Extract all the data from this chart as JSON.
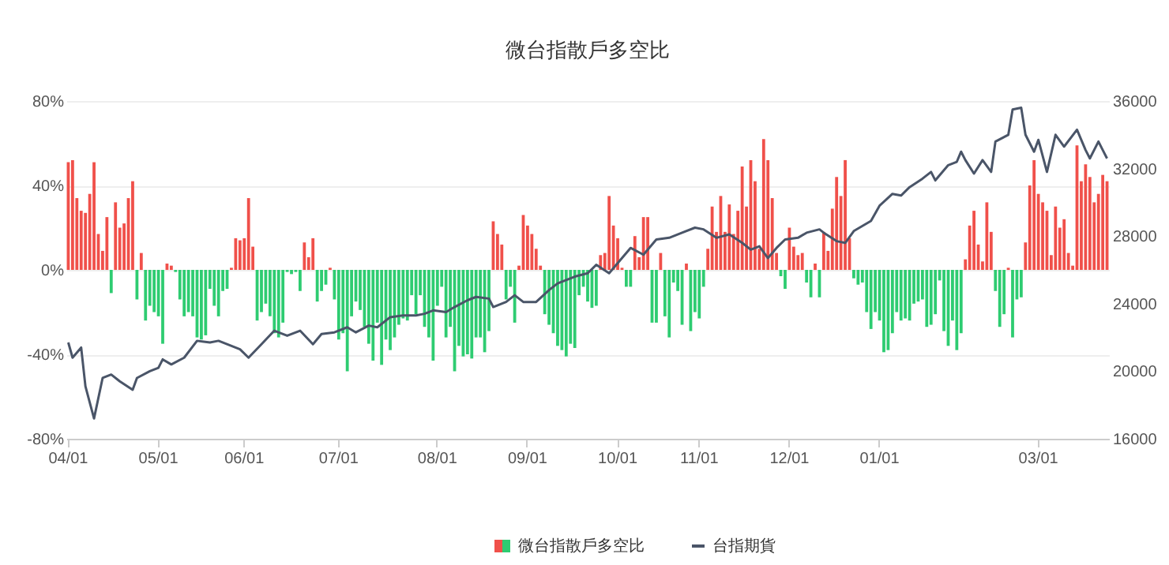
{
  "chart_data": {
    "type": "bar",
    "title": "微台指散戶多空比",
    "categories": [
      "04/01",
      null,
      null,
      null,
      null,
      null,
      null,
      null,
      null,
      null,
      null,
      null,
      null,
      null,
      null,
      null,
      null,
      null,
      null,
      null,
      null,
      "05/01",
      null,
      null,
      null,
      null,
      null,
      null,
      null,
      null,
      null,
      null,
      null,
      null,
      null,
      null,
      null,
      null,
      null,
      null,
      null,
      "06/01",
      null,
      null,
      null,
      null,
      null,
      null,
      null,
      null,
      null,
      null,
      null,
      null,
      null,
      null,
      null,
      null,
      null,
      null,
      null,
      null,
      null,
      "07/01",
      null,
      null,
      null,
      null,
      null,
      null,
      null,
      null,
      null,
      null,
      null,
      null,
      null,
      null,
      null,
      null,
      null,
      null,
      null,
      null,
      null,
      null,
      "08/01",
      null,
      null,
      null,
      null,
      null,
      null,
      null,
      null,
      null,
      null,
      null,
      null,
      null,
      null,
      null,
      null,
      null,
      null,
      null,
      null,
      "09/01",
      null,
      null,
      null,
      null,
      null,
      null,
      null,
      null,
      null,
      null,
      null,
      null,
      null,
      null,
      null,
      null,
      null,
      null,
      null,
      null,
      "10/01",
      null,
      null,
      null,
      null,
      null,
      null,
      null,
      null,
      null,
      null,
      null,
      null,
      null,
      null,
      null,
      null,
      null,
      null,
      "11/01",
      null,
      null,
      null,
      null,
      null,
      null,
      null,
      null,
      null,
      null,
      null,
      null,
      null,
      null,
      null,
      null,
      null,
      null,
      null,
      null,
      "12/01",
      null,
      null,
      null,
      null,
      null,
      null,
      null,
      null,
      null,
      null,
      null,
      null,
      null,
      null,
      null,
      null,
      null,
      null,
      null,
      null,
      "01/01",
      null,
      null,
      null,
      null,
      null,
      null,
      null,
      null,
      null,
      null,
      null,
      null,
      null,
      null,
      null,
      null,
      null,
      null,
      null,
      null,
      null,
      null,
      null,
      null,
      null,
      null,
      null,
      null,
      null,
      null,
      null,
      null,
      null,
      null,
      null,
      null,
      "03/01",
      null,
      null,
      null,
      null,
      null,
      null,
      null,
      null,
      null,
      null,
      null,
      null,
      null,
      null,
      null,
      null
    ],
    "series": [
      {
        "name": "微台指散戶多空比",
        "values": [
          51,
          52,
          34,
          28,
          27,
          36,
          51,
          17,
          9,
          25,
          -11,
          32,
          20,
          22,
          34,
          42,
          -14,
          8,
          -24,
          -17,
          -20,
          -22,
          -35,
          3,
          2,
          -1,
          -14,
          -22,
          -20,
          -22,
          -32,
          -33,
          -31,
          -9,
          -17,
          -22,
          -10,
          -9,
          1,
          15,
          14,
          15,
          34,
          11,
          -24,
          -20,
          -16,
          -22,
          -30,
          -32,
          -25,
          -1,
          -2,
          -1,
          -10,
          13,
          6,
          15,
          -15,
          -10,
          -7,
          1,
          -14,
          -33,
          -30,
          -48,
          -22,
          -15,
          -19,
          -27,
          -35,
          -43,
          -25,
          -45,
          -33,
          -38,
          -32,
          -26,
          -23,
          -24,
          -12,
          -21,
          -12,
          -27,
          -32,
          -43,
          -17,
          -8,
          -32,
          -27,
          -48,
          -36,
          -41,
          -40,
          -42,
          -32,
          -32,
          -39,
          -29,
          23,
          17,
          12,
          -14,
          -8,
          -25,
          2,
          26,
          21,
          17,
          10,
          2,
          -21,
          -26,
          -30,
          -36,
          -38,
          -41,
          -35,
          -37,
          -12,
          -8,
          -15,
          -18,
          -17,
          7,
          8,
          35,
          21,
          15,
          1,
          -8,
          -8,
          16,
          6,
          25,
          25,
          -25,
          -25,
          8,
          -22,
          -32,
          -6,
          -10,
          -26,
          3,
          -29,
          -20,
          -23,
          -8,
          10,
          30,
          18,
          35,
          18,
          31,
          17,
          28,
          49,
          30,
          52,
          42,
          10,
          62,
          52,
          34,
          8,
          -3,
          -9,
          20,
          11,
          7,
          8,
          -6,
          -13,
          3,
          -13,
          18,
          9,
          29,
          44,
          35,
          52,
          15,
          -4,
          -7,
          -6,
          -20,
          -28,
          -20,
          -24,
          -39,
          -38,
          -30,
          -20,
          -24,
          -23,
          -24,
          -16,
          -15,
          -14,
          -27,
          -26,
          -21,
          -5,
          -29,
          -36,
          -24,
          -38,
          -30,
          5,
          21,
          28,
          12,
          4,
          32,
          18,
          -10,
          -27,
          -21,
          1,
          -32,
          -14,
          -13,
          13,
          40,
          52,
          36,
          32,
          28,
          7,
          30,
          20,
          24,
          8,
          2,
          59,
          42,
          50,
          44,
          32,
          36,
          45,
          42
        ],
        "colors": [
          "#f0504a",
          "#f0504a",
          "#f0504a",
          "#f0504a",
          "#f0504a",
          "#f0504a",
          "#f0504a",
          "#f0504a",
          "#f0504a",
          "#f0504a",
          "#2ecc71",
          "#f0504a",
          "#f0504a",
          "#f0504a",
          "#f0504a",
          "#f0504a",
          "#2ecc71",
          "#f0504a",
          "#2ecc71",
          "#2ecc71",
          "#2ecc71",
          "#2ecc71",
          "#2ecc71",
          "#f0504a",
          "#f0504a",
          "#2ecc71",
          "#2ecc71",
          "#2ecc71",
          "#2ecc71",
          "#2ecc71",
          "#2ecc71",
          "#2ecc71",
          "#2ecc71",
          "#2ecc71",
          "#2ecc71",
          "#2ecc71",
          "#2ecc71",
          "#2ecc71",
          "#f0504a",
          "#f0504a",
          "#f0504a",
          "#f0504a",
          "#f0504a",
          "#f0504a",
          "#2ecc71",
          "#2ecc71",
          "#2ecc71",
          "#2ecc71",
          "#2ecc71",
          "#2ecc71",
          "#2ecc71",
          "#2ecc71",
          "#2ecc71",
          "#2ecc71",
          "#2ecc71",
          "#f0504a",
          "#f0504a",
          "#f0504a",
          "#2ecc71",
          "#2ecc71",
          "#2ecc71",
          "#f0504a",
          "#2ecc71",
          "#2ecc71",
          "#2ecc71",
          "#2ecc71",
          "#2ecc71",
          "#2ecc71",
          "#2ecc71",
          "#2ecc71",
          "#2ecc71",
          "#2ecc71",
          "#2ecc71",
          "#2ecc71",
          "#2ecc71",
          "#2ecc71",
          "#2ecc71",
          "#2ecc71",
          "#2ecc71",
          "#2ecc71",
          "#2ecc71",
          "#2ecc71",
          "#2ecc71",
          "#2ecc71",
          "#2ecc71",
          "#2ecc71",
          "#2ecc71",
          "#2ecc71",
          "#2ecc71",
          "#2ecc71",
          "#2ecc71",
          "#2ecc71",
          "#2ecc71",
          "#2ecc71",
          "#2ecc71",
          "#2ecc71",
          "#2ecc71",
          "#2ecc71",
          "#2ecc71",
          "#f0504a",
          "#f0504a",
          "#f0504a",
          "#2ecc71",
          "#2ecc71",
          "#2ecc71",
          "#f0504a",
          "#f0504a",
          "#f0504a",
          "#f0504a",
          "#f0504a",
          "#f0504a",
          "#2ecc71",
          "#2ecc71",
          "#2ecc71",
          "#2ecc71",
          "#2ecc71",
          "#2ecc71",
          "#2ecc71",
          "#2ecc71",
          "#2ecc71",
          "#2ecc71",
          "#2ecc71",
          "#2ecc71",
          "#2ecc71",
          "#f0504a",
          "#f0504a",
          "#f0504a",
          "#f0504a",
          "#f0504a",
          "#f0504a",
          "#2ecc71",
          "#2ecc71",
          "#f0504a",
          "#f0504a",
          "#f0504a",
          "#f0504a",
          "#2ecc71",
          "#2ecc71",
          "#f0504a",
          "#2ecc71",
          "#2ecc71",
          "#2ecc71",
          "#2ecc71",
          "#2ecc71",
          "#f0504a",
          "#2ecc71",
          "#2ecc71",
          "#2ecc71",
          "#2ecc71",
          "#f0504a",
          "#f0504a",
          "#f0504a",
          "#f0504a",
          "#f0504a",
          "#f0504a",
          "#f0504a",
          "#f0504a",
          "#f0504a",
          "#f0504a",
          "#f0504a",
          "#f0504a",
          "#f0504a",
          "#f0504a",
          "#f0504a",
          "#f0504a",
          "#f0504a",
          "#2ecc71",
          "#2ecc71",
          "#f0504a",
          "#f0504a",
          "#f0504a",
          "#f0504a",
          "#2ecc71",
          "#2ecc71",
          "#f0504a",
          "#2ecc71",
          "#f0504a",
          "#f0504a",
          "#f0504a",
          "#f0504a",
          "#f0504a",
          "#f0504a",
          "#f0504a",
          "#2ecc71",
          "#2ecc71",
          "#2ecc71",
          "#2ecc71",
          "#2ecc71",
          "#2ecc71",
          "#2ecc71",
          "#2ecc71",
          "#2ecc71",
          "#2ecc71",
          "#2ecc71",
          "#2ecc71",
          "#2ecc71",
          "#2ecc71",
          "#2ecc71",
          "#2ecc71",
          "#2ecc71",
          "#2ecc71",
          "#2ecc71",
          "#2ecc71",
          "#2ecc71",
          "#2ecc71",
          "#2ecc71",
          "#2ecc71",
          "#2ecc71",
          "#2ecc71",
          "#f0504a",
          "#f0504a",
          "#f0504a",
          "#f0504a",
          "#f0504a",
          "#f0504a",
          "#f0504a",
          "#2ecc71",
          "#2ecc71",
          "#2ecc71",
          "#f0504a",
          "#2ecc71",
          "#2ecc71",
          "#2ecc71",
          "#f0504a",
          "#f0504a",
          "#f0504a",
          "#f0504a",
          "#f0504a",
          "#f0504a",
          "#f0504a",
          "#f0504a",
          "#f0504a",
          "#f0504a",
          "#f0504a",
          "#f0504a",
          "#f0504a",
          "#f0504a",
          "#f0504a",
          "#f0504a",
          "#f0504a",
          "#f0504a",
          "#f0504a",
          "#f0504a"
        ]
      },
      {
        "name": "台指期貨",
        "type": "line",
        "axis": "y2",
        "color": "#4a5568",
        "values": [
          21700,
          20800,
          null,
          21400,
          19100,
          null,
          17200,
          null,
          19600,
          null,
          19800,
          null,
          19400,
          null,
          null,
          18900,
          19600,
          null,
          null,
          20000,
          null,
          20200,
          20700,
          null,
          20400,
          null,
          null,
          20800,
          null,
          null,
          21800,
          null,
          null,
          21700,
          null,
          21800,
          null,
          null,
          null,
          null,
          21300,
          null,
          20800,
          null,
          null,
          21600,
          null,
          null,
          22400,
          null,
          null,
          22100,
          null,
          null,
          22400,
          null,
          null,
          21600,
          null,
          22200,
          null,
          null,
          22300,
          null,
          null,
          22600,
          null,
          22300,
          null,
          null,
          22700,
          null,
          22600,
          null,
          null,
          23200,
          null,
          null,
          23300,
          null,
          null,
          23300,
          null,
          23400,
          null,
          23600,
          null,
          null,
          23500,
          null,
          23800,
          null,
          null,
          24200,
          null,
          24400,
          null,
          null,
          24300,
          23800,
          null,
          null,
          24100,
          null,
          24500,
          null,
          24100,
          null,
          null,
          24100,
          null,
          null,
          24800,
          null,
          25200,
          null,
          null,
          null,
          25600,
          null,
          null,
          25800,
          null,
          26300,
          null,
          null,
          25800,
          null,
          null,
          26700,
          null,
          27300,
          null,
          null,
          26900,
          null,
          null,
          27800,
          null,
          null,
          27900,
          null,
          null,
          28200,
          null,
          null,
          28500,
          null,
          28400,
          null,
          null,
          27900,
          null,
          null,
          28100,
          null,
          null,
          27600,
          null,
          27200,
          null,
          27400,
          null,
          26700,
          null,
          27300,
          null,
          27800,
          null,
          null,
          27900,
          null,
          28200,
          null,
          null,
          28400,
          28200,
          null,
          null,
          27700,
          null,
          27600,
          null,
          28300,
          null,
          null,
          null,
          28900,
          null,
          29800,
          null,
          null,
          30500,
          null,
          30400,
          null,
          30900,
          null,
          null,
          31400,
          null,
          31800,
          31300,
          null,
          null,
          32200,
          null,
          32400,
          33000,
          32500,
          null,
          31700,
          null,
          32500,
          null,
          31800,
          33600,
          null,
          null,
          34000,
          35500,
          null,
          35600,
          34000,
          null,
          33000,
          33700,
          null,
          31800,
          null,
          34000,
          null,
          33300,
          null,
          null,
          34300,
          null,
          33100,
          32600,
          null,
          33600,
          33100,
          32600
        ]
      }
    ],
    "ylim": [
      -80,
      80
    ],
    "yticks": [
      {
        "value": -80,
        "label": "-80%"
      },
      {
        "value": -40,
        "label": "-40%"
      },
      {
        "value": 0,
        "label": "0%"
      },
      {
        "value": 40,
        "label": "40%"
      },
      {
        "value": 80,
        "label": "80%"
      }
    ],
    "y2lim": [
      16000,
      36000
    ],
    "y2ticks": [
      16000,
      20000,
      24000,
      28000,
      32000,
      36000
    ],
    "grid": "y",
    "legend": "bottom",
    "line_style": "solid"
  }
}
